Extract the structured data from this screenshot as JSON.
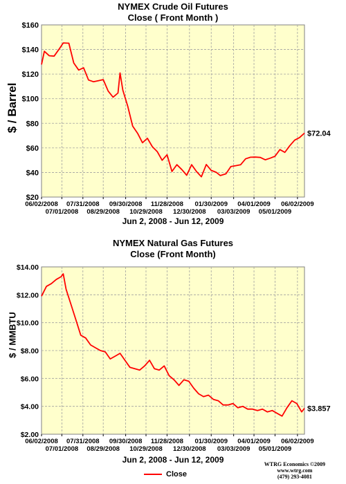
{
  "chart_data": [
    {
      "type": "line",
      "title": "NYMEX Crude Oil Futures",
      "subtitle": "Close ( Front Month )",
      "ylabel": "$ / Barrel",
      "xlabel": "Jun 2, 2008 - Jun 12, 2009",
      "ylim": [
        20,
        160
      ],
      "yticks": [
        "$20",
        "$40",
        "$60",
        "$80",
        "$100",
        "$120",
        "$140",
        "$160"
      ],
      "xticks_row1": [
        "06/02/2008",
        "07/31/2008",
        "09/30/2008",
        "11/28/2008",
        "01/30/2009",
        "04/01/2009",
        "06/02/2009"
      ],
      "xticks_row2": [
        "07/01/2008",
        "08/29/2008",
        "10/29/2008",
        "12/30/2008",
        "03/03/2009",
        "05/01/2009"
      ],
      "grid": true,
      "last_value_label": "$72.04",
      "series": [
        {
          "name": "Close",
          "x": [
            "2008-06-02",
            "2008-06-06",
            "2008-06-13",
            "2008-06-20",
            "2008-06-27",
            "2008-07-03",
            "2008-07-11",
            "2008-07-18",
            "2008-07-25",
            "2008-08-01",
            "2008-08-08",
            "2008-08-15",
            "2008-08-22",
            "2008-08-29",
            "2008-09-05",
            "2008-09-12",
            "2008-09-19",
            "2008-09-22",
            "2008-09-26",
            "2008-10-03",
            "2008-10-10",
            "2008-10-17",
            "2008-10-24",
            "2008-10-31",
            "2008-11-07",
            "2008-11-14",
            "2008-11-21",
            "2008-11-28",
            "2008-12-05",
            "2008-12-12",
            "2008-12-19",
            "2008-12-26",
            "2009-01-02",
            "2009-01-09",
            "2009-01-16",
            "2009-01-23",
            "2009-01-30",
            "2009-02-06",
            "2009-02-12",
            "2009-02-20",
            "2009-02-27",
            "2009-03-06",
            "2009-03-13",
            "2009-03-20",
            "2009-03-27",
            "2009-04-03",
            "2009-04-10",
            "2009-04-17",
            "2009-04-24",
            "2009-05-01",
            "2009-05-08",
            "2009-05-15",
            "2009-05-22",
            "2009-05-29",
            "2009-06-05",
            "2009-06-12"
          ],
          "y": [
            127.8,
            138.5,
            134.9,
            134.6,
            140.2,
            145.3,
            145.1,
            129.0,
            123.3,
            125.1,
            115.2,
            113.8,
            114.6,
            115.5,
            106.2,
            101.2,
            104.6,
            120.9,
            106.9,
            93.9,
            77.7,
            71.9,
            64.2,
            67.8,
            61.0,
            57.0,
            49.9,
            54.4,
            40.8,
            46.3,
            42.4,
            37.7,
            46.3,
            40.8,
            36.5,
            46.5,
            41.7,
            40.2,
            37.5,
            38.9,
            44.8,
            45.5,
            46.3,
            51.1,
            52.4,
            52.5,
            52.2,
            50.3,
            51.6,
            53.2,
            58.6,
            56.3,
            61.7,
            66.3,
            68.4,
            72.0
          ]
        }
      ]
    },
    {
      "type": "line",
      "title": "NYMEX Natural Gas Futures",
      "subtitle": "Close (Front Month)",
      "ylabel": "$ / MMBTU",
      "xlabel": "Jun 2, 2008 - Jun 12, 2009",
      "ylim": [
        2,
        14
      ],
      "yticks": [
        "$2.00",
        "$4.00",
        "$6.00",
        "$8.00",
        "$10.00",
        "$12.00",
        "$14.00"
      ],
      "xticks_row1": [
        "06/02/2008",
        "07/31/2008",
        "09/30/2008",
        "11/28/2008",
        "01/30/2009",
        "04/01/2009",
        "06/02/2009"
      ],
      "xticks_row2": [
        "07/01/2008",
        "08/29/2008",
        "10/29/2008",
        "12/30/2008",
        "03/03/2009",
        "05/01/2009"
      ],
      "grid": true,
      "last_value_label": "$3.857",
      "series": [
        {
          "name": "Close",
          "x": [
            "2008-06-02",
            "2008-06-09",
            "2008-06-16",
            "2008-06-23",
            "2008-06-30",
            "2008-07-03",
            "2008-07-07",
            "2008-07-14",
            "2008-07-21",
            "2008-07-28",
            "2008-08-04",
            "2008-08-11",
            "2008-08-18",
            "2008-08-25",
            "2008-09-01",
            "2008-09-08",
            "2008-09-15",
            "2008-09-22",
            "2008-09-29",
            "2008-10-06",
            "2008-10-13",
            "2008-10-20",
            "2008-10-27",
            "2008-11-03",
            "2008-11-10",
            "2008-11-17",
            "2008-11-24",
            "2008-12-01",
            "2008-12-08",
            "2008-12-15",
            "2008-12-22",
            "2008-12-29",
            "2009-01-05",
            "2009-01-12",
            "2009-01-19",
            "2009-01-26",
            "2009-02-02",
            "2009-02-09",
            "2009-02-16",
            "2009-02-23",
            "2009-03-02",
            "2009-03-09",
            "2009-03-16",
            "2009-03-23",
            "2009-03-30",
            "2009-04-06",
            "2009-04-13",
            "2009-04-20",
            "2009-04-27",
            "2009-05-04",
            "2009-05-11",
            "2009-05-18",
            "2009-05-25",
            "2009-06-01",
            "2009-06-08",
            "2009-06-12"
          ],
          "y": [
            11.9,
            12.6,
            12.8,
            13.1,
            13.3,
            13.5,
            12.4,
            11.3,
            10.2,
            9.1,
            8.9,
            8.4,
            8.2,
            8.0,
            7.9,
            7.4,
            7.6,
            7.8,
            7.3,
            6.8,
            6.7,
            6.6,
            6.9,
            7.3,
            6.7,
            6.6,
            6.9,
            6.2,
            5.9,
            5.5,
            5.9,
            5.8,
            5.3,
            4.9,
            4.7,
            4.8,
            4.5,
            4.4,
            4.1,
            4.1,
            4.2,
            3.9,
            4.0,
            3.8,
            3.8,
            3.7,
            3.8,
            3.6,
            3.7,
            3.5,
            3.3,
            3.9,
            4.4,
            4.2,
            3.6,
            3.86
          ]
        }
      ]
    }
  ],
  "date_range": "Jun 2, 2008 - Jun 12, 2009",
  "legend": {
    "label": "Close",
    "color": "#ff0000"
  },
  "credit": {
    "line1": "WTRG Economics ©2009",
    "line2": "www.wtrg.com",
    "line3": "(479) 293-4081"
  },
  "colors": {
    "plot_bg": "#ffffcc",
    "series": "#ff0000",
    "grid": "#a0a0a0"
  }
}
